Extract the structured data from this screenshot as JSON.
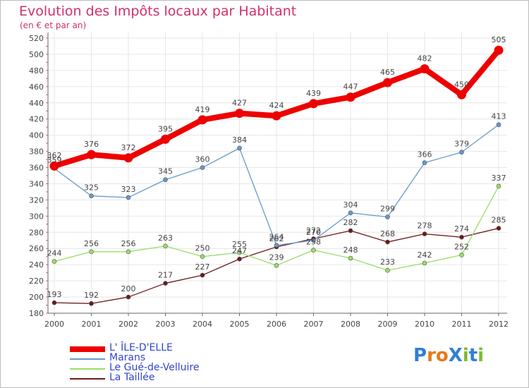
{
  "title": "Evolution des Impôts locaux par Habitant",
  "subtitle": "(en € et par an)",
  "logo": {
    "text": "ProXiti",
    "letters": [
      "P",
      "r",
      "o",
      "X",
      "i",
      "t",
      "i"
    ],
    "colors": [
      "#2f7fd8",
      "#e57a1a",
      "#e57a1a",
      "#2f7fd8",
      "#7dbb2f",
      "#2f7fd8",
      "#7dbb2f"
    ]
  },
  "chart_data": {
    "type": "line",
    "title": "Evolution des Impôts locaux par Habitant",
    "subtitle": "(en € et par an)",
    "xlabel": "",
    "ylabel": "",
    "x": [
      "2000",
      "2001",
      "2002",
      "2003",
      "2004",
      "2005",
      "2006",
      "2007",
      "2008",
      "2009",
      "2010",
      "2011",
      "2012"
    ],
    "ylim": [
      180,
      520
    ],
    "yticks": [
      180,
      200,
      220,
      240,
      260,
      280,
      300,
      320,
      340,
      360,
      380,
      400,
      420,
      440,
      460,
      480,
      500,
      520
    ],
    "grid": true,
    "legend_position": "bottom-left",
    "series": [
      {
        "name": "L' ÎLE-D'ELLE",
        "color": "#ee0000",
        "values": [
          362,
          376,
          372,
          395,
          419,
          427,
          424,
          439,
          447,
          465,
          482,
          450,
          505
        ]
      },
      {
        "name": "Marans",
        "color": "#6699cc",
        "values": [
          359,
          325,
          323,
          345,
          360,
          384,
          264,
          270,
          304,
          299,
          366,
          379,
          413
        ]
      },
      {
        "name": "Le Gué-de-Velluire",
        "color": "#99dd66",
        "values": [
          244,
          256,
          256,
          263,
          250,
          255,
          239,
          258,
          248,
          233,
          242,
          252,
          337
        ]
      },
      {
        "name": "La Taillée",
        "color": "#6b1a1a",
        "values": [
          193,
          192,
          200,
          217,
          227,
          247,
          262,
          272,
          282,
          268,
          278,
          274,
          285
        ]
      }
    ],
    "data_labels": [
      [
        "362",
        "376",
        "372",
        "395",
        "419",
        "427",
        "424",
        "439",
        "447",
        "465",
        "482",
        "450",
        "505"
      ],
      [
        "359",
        "325",
        "323",
        "345",
        "360",
        "384",
        "264",
        "270",
        "304",
        "299",
        "366",
        "379",
        "413"
      ],
      [
        "244",
        "256",
        "256",
        "263",
        "250",
        "255",
        "239",
        "258",
        "248",
        "233",
        "242",
        "252",
        "337"
      ],
      [
        "193",
        "192",
        "200",
        "217",
        "227",
        "247",
        "262",
        "272",
        "282",
        "268",
        "278",
        "274",
        "285"
      ]
    ]
  }
}
